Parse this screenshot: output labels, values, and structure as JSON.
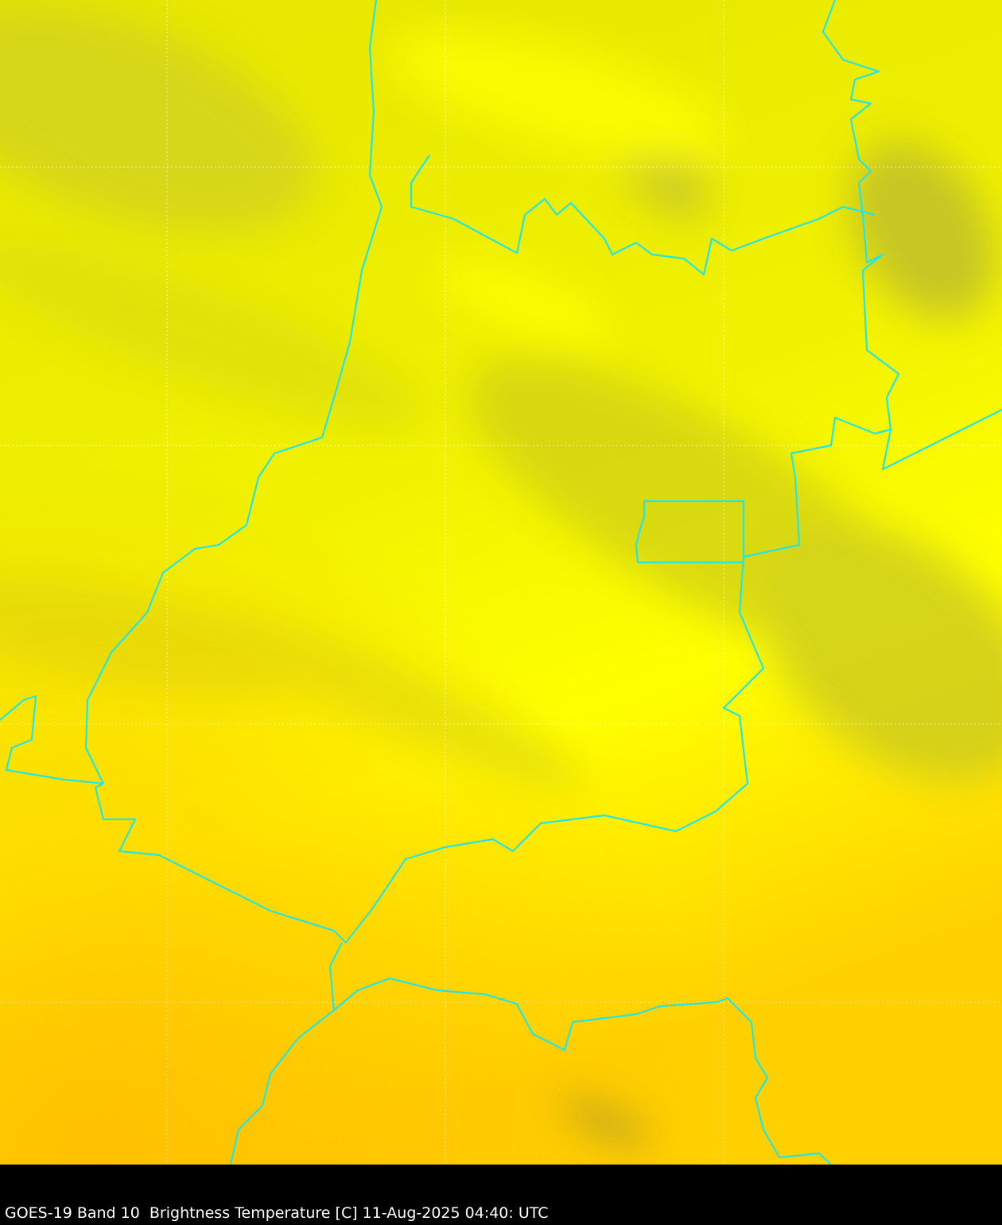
{
  "caption": "GOES-19 Band 10  Brightness Temperature [C] 11-Aug-2025 04:40: UTC",
  "colors": {
    "base_yellow": "#f0f000",
    "bright_yellow": "#ffff00",
    "cool_olive": "#c8c820",
    "warm_orange": "#ffc400",
    "border": "#22e6e6",
    "graticule": "#ffffff",
    "background": "#000000"
  }
}
